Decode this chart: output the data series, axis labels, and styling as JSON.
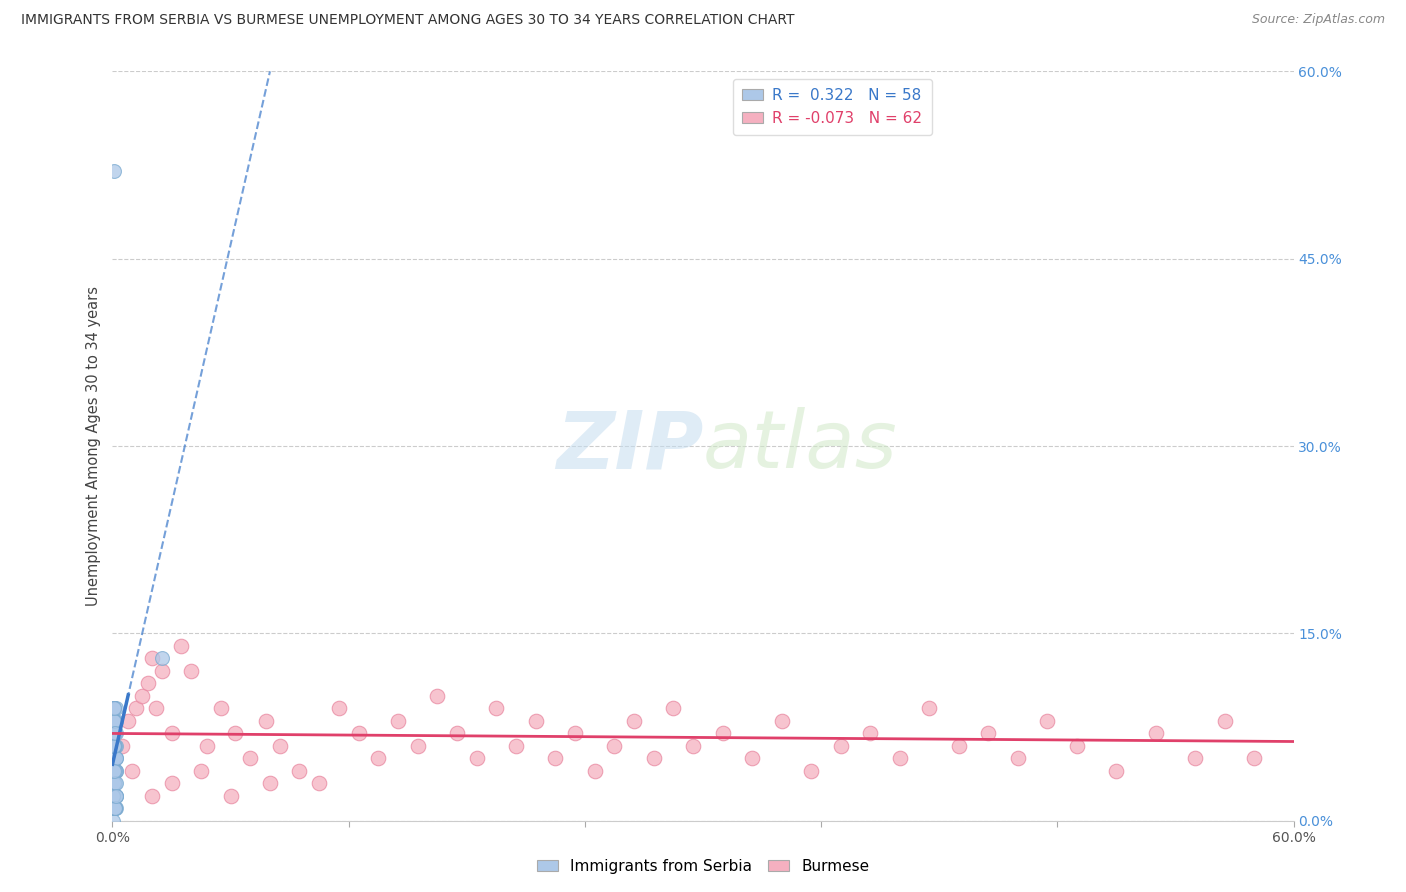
{
  "title": "IMMIGRANTS FROM SERBIA VS BURMESE UNEMPLOYMENT AMONG AGES 30 TO 34 YEARS CORRELATION CHART",
  "source": "Source: ZipAtlas.com",
  "ylabel": "Unemployment Among Ages 30 to 34 years",
  "xlim": [
    0.0,
    0.6
  ],
  "ylim": [
    0.0,
    0.6
  ],
  "watermark_zip": "ZIP",
  "watermark_atlas": "atlas",
  "serbia_R": 0.322,
  "serbia_N": 58,
  "burmese_R": -0.073,
  "burmese_N": 62,
  "serbia_fill_color": "#adc8e8",
  "burmese_fill_color": "#f5b0c0",
  "serbia_line_color": "#3a78c9",
  "burmese_line_color": "#e0406a",
  "serbia_dot_edge": "#7aaad0",
  "burmese_dot_edge": "#e888a0",
  "grid_color": "#cccccc",
  "background_color": "#ffffff",
  "right_label_color": "#4a90d9",
  "serbia_scatter_x": [
    0.0005,
    0.001,
    0.0015,
    0.001,
    0.002,
    0.001,
    0.0008,
    0.0012,
    0.0018,
    0.001,
    0.0005,
    0.0015,
    0.001,
    0.002,
    0.0008,
    0.001,
    0.0012,
    0.0005,
    0.0018,
    0.001,
    0.002,
    0.001,
    0.0015,
    0.0008,
    0.001,
    0.0012,
    0.0005,
    0.001,
    0.002,
    0.0018,
    0.001,
    0.0015,
    0.0008,
    0.001,
    0.0012,
    0.002,
    0.001,
    0.0005,
    0.0018,
    0.001,
    0.0015,
    0.0008,
    0.001,
    0.002,
    0.0012,
    0.001,
    0.0005,
    0.0018,
    0.001,
    0.0015,
    0.001,
    0.002,
    0.001,
    0.0008,
    0.0012,
    0.0018,
    0.025,
    0.001
  ],
  "serbia_scatter_y": [
    0.0,
    0.02,
    0.05,
    0.08,
    0.01,
    0.03,
    0.07,
    0.04,
    0.06,
    0.09,
    0.01,
    0.05,
    0.02,
    0.08,
    0.06,
    0.03,
    0.01,
    0.07,
    0.04,
    0.06,
    0.02,
    0.09,
    0.05,
    0.01,
    0.08,
    0.03,
    0.06,
    0.04,
    0.07,
    0.02,
    0.05,
    0.01,
    0.09,
    0.03,
    0.06,
    0.04,
    0.07,
    0.02,
    0.05,
    0.08,
    0.01,
    0.06,
    0.03,
    0.09,
    0.04,
    0.07,
    0.02,
    0.05,
    0.08,
    0.01,
    0.06,
    0.03,
    0.09,
    0.04,
    0.07,
    0.02,
    0.13,
    0.52
  ],
  "burmese_scatter_x": [
    0.005,
    0.012,
    0.02,
    0.015,
    0.025,
    0.03,
    0.008,
    0.018,
    0.022,
    0.035,
    0.04,
    0.048,
    0.055,
    0.062,
    0.07,
    0.078,
    0.085,
    0.095,
    0.105,
    0.115,
    0.125,
    0.135,
    0.145,
    0.155,
    0.165,
    0.175,
    0.185,
    0.195,
    0.205,
    0.215,
    0.225,
    0.235,
    0.245,
    0.255,
    0.265,
    0.275,
    0.285,
    0.295,
    0.31,
    0.325,
    0.34,
    0.355,
    0.37,
    0.385,
    0.4,
    0.415,
    0.43,
    0.445,
    0.46,
    0.475,
    0.49,
    0.51,
    0.53,
    0.55,
    0.565,
    0.58,
    0.01,
    0.02,
    0.03,
    0.045,
    0.06,
    0.08
  ],
  "burmese_scatter_y": [
    0.06,
    0.09,
    0.13,
    0.1,
    0.12,
    0.07,
    0.08,
    0.11,
    0.09,
    0.14,
    0.12,
    0.06,
    0.09,
    0.07,
    0.05,
    0.08,
    0.06,
    0.04,
    0.03,
    0.09,
    0.07,
    0.05,
    0.08,
    0.06,
    0.1,
    0.07,
    0.05,
    0.09,
    0.06,
    0.08,
    0.05,
    0.07,
    0.04,
    0.06,
    0.08,
    0.05,
    0.09,
    0.06,
    0.07,
    0.05,
    0.08,
    0.04,
    0.06,
    0.07,
    0.05,
    0.09,
    0.06,
    0.07,
    0.05,
    0.08,
    0.06,
    0.04,
    0.07,
    0.05,
    0.08,
    0.05,
    0.04,
    0.02,
    0.03,
    0.04,
    0.02,
    0.03
  ]
}
